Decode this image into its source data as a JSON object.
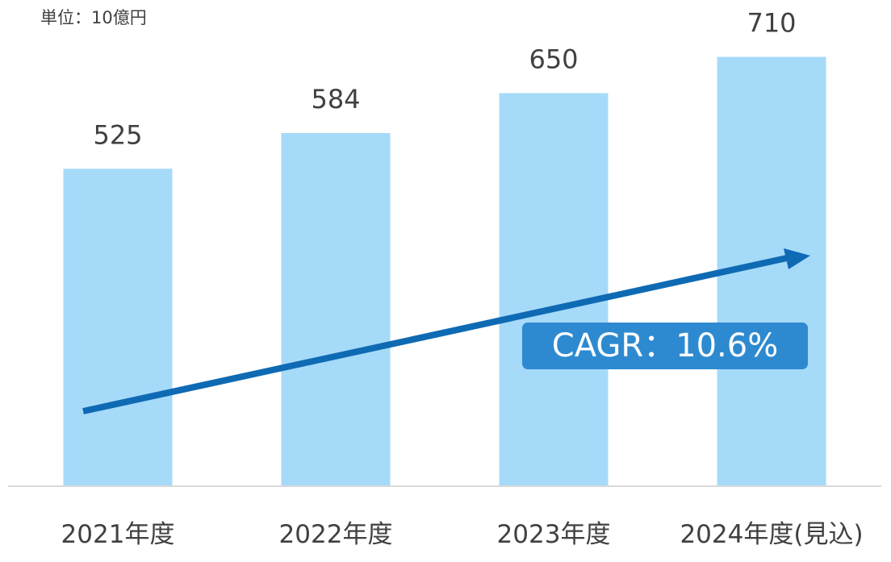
{
  "unit_label": "単位：10億円",
  "cagr_label": "CAGR：10.6%",
  "chart_data": {
    "type": "bar",
    "categories": [
      "2021年度",
      "2022年度",
      "2023年度",
      "2024年度(見込)"
    ],
    "values": [
      525,
      584,
      650,
      710
    ],
    "value_labels": [
      "525",
      "584",
      "650",
      "710"
    ],
    "title": "",
    "xlabel": "",
    "ylabel": "",
    "ylim": [
      0,
      800
    ],
    "colors": {
      "bar": "#a6daf9",
      "axis": "#d9d9d9",
      "trend_arrow": "#0f6ab4"
    },
    "annotation": "CAGR：10.6%"
  }
}
